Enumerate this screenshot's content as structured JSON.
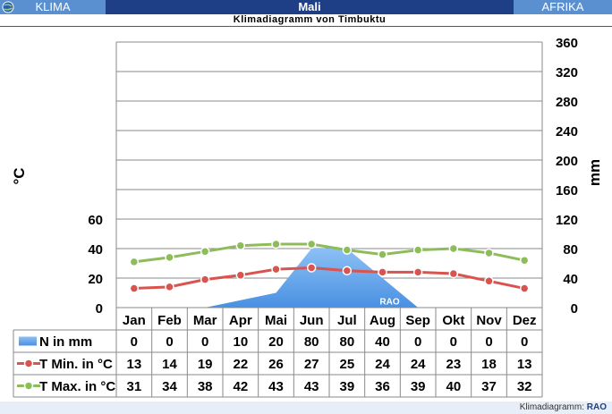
{
  "header": {
    "left_label": "KLIMA",
    "center_label": "Mali",
    "right_label": "AFRIKA",
    "subtitle": "Klimadiagramm von Timbuktu"
  },
  "footer": {
    "prefix": "Klimadiagramm:",
    "brand": "RAO"
  },
  "colors": {
    "header_bg": "#1e3f86",
    "header_side_bg": "#5a8fd0",
    "precip_fill": "#4a90e2",
    "tmin_line": "#d9534f",
    "tmax_line": "#8fbc5a"
  },
  "chart_data": {
    "type": "line",
    "categories": [
      "Jan",
      "Feb",
      "Mar",
      "Apr",
      "Mai",
      "Jun",
      "Jul",
      "Aug",
      "Sep",
      "Okt",
      "Nov",
      "Dez"
    ],
    "series": [
      {
        "name": "N in mm",
        "kind": "area",
        "axis": "right",
        "values": [
          0,
          0,
          0,
          10,
          20,
          80,
          80,
          40,
          0,
          0,
          0,
          0
        ]
      },
      {
        "name": "T Min. in °C",
        "kind": "line",
        "axis": "left",
        "values": [
          13,
          14,
          19,
          22,
          26,
          27,
          25,
          24,
          24,
          23,
          18,
          13
        ]
      },
      {
        "name": "T Max. in °C",
        "kind": "line",
        "axis": "left",
        "values": [
          31,
          34,
          38,
          42,
          43,
          43,
          39,
          36,
          39,
          40,
          37,
          32
        ]
      }
    ],
    "y_left": {
      "label": "°C",
      "ticks": [
        0,
        20,
        40,
        60
      ],
      "range": [
        0,
        180
      ]
    },
    "y_right": {
      "label": "mm",
      "ticks": [
        0,
        40,
        80,
        120,
        160,
        200,
        240,
        280,
        320,
        360
      ],
      "range": [
        0,
        360
      ]
    },
    "grid": true,
    "watermark": "RAO",
    "legend": "table-below"
  }
}
